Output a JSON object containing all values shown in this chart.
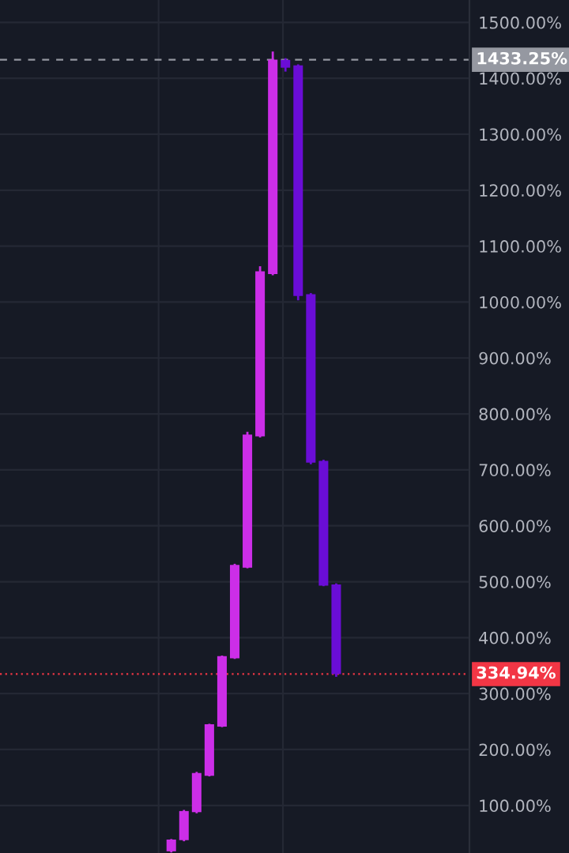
{
  "chart_data": {
    "type": "candlestick",
    "categories": [
      null,
      null,
      null,
      null,
      null,
      null,
      null,
      null,
      null,
      null,
      null,
      null,
      null,
      null,
      null,
      null,
      null,
      null,
      null,
      null,
      null,
      null,
      null,
      null,
      null,
      null,
      null,
      null,
      null,
      null,
      null,
      null,
      null,
      null,
      null,
      null,
      null
    ],
    "ohlc": [
      null,
      null,
      null,
      null,
      null,
      null,
      null,
      null,
      null,
      null,
      null,
      null,
      null,
      [
        18,
        40,
        16,
        39
      ],
      [
        38,
        92,
        36,
        90
      ],
      [
        88,
        160,
        86,
        158
      ],
      [
        153,
        246,
        152,
        245
      ],
      [
        241,
        368,
        240,
        367
      ],
      [
        363,
        532,
        362,
        530
      ],
      [
        525,
        768,
        524,
        763
      ],
      [
        760,
        1064,
        758,
        1055
      ],
      [
        1050,
        1448,
        1048,
        1433.25
      ],
      [
        1433,
        1436,
        1412,
        1419
      ],
      [
        1423,
        1425,
        1003,
        1011
      ],
      [
        1014,
        1016,
        710,
        713
      ],
      [
        716,
        718,
        492,
        493
      ],
      [
        495,
        497,
        330,
        334.94
      ],
      null,
      null,
      null,
      null,
      null,
      null,
      null,
      null,
      null,
      null
    ],
    "colors": [
      null,
      null,
      null,
      null,
      null,
      null,
      null,
      null,
      null,
      null,
      null,
      null,
      null,
      "#cc2ee8",
      "#cc2ee8",
      "#cc2ee8",
      "#cc2ee8",
      "#cc2ee8",
      "#cc2ee8",
      "#cc2ee8",
      "#cc2ee8",
      "#cc2ee8",
      "#6a0dd6",
      "#6a0dd6",
      "#6a0dd6",
      "#6a0dd6",
      "#6a0dd6",
      null,
      null,
      null,
      null,
      null,
      null,
      null,
      null,
      null,
      null
    ],
    "ylim": [
      15,
      1540
    ],
    "yticks": [
      {
        "value": 100,
        "label": "100.00%"
      },
      {
        "value": 200,
        "label": "200.00%"
      },
      {
        "value": 300,
        "label": "300.00%"
      },
      {
        "value": 400,
        "label": "400.00%"
      },
      {
        "value": 500,
        "label": "500.00%"
      },
      {
        "value": 600,
        "label": "600.00%"
      },
      {
        "value": 700,
        "label": "700.00%"
      },
      {
        "value": 800,
        "label": "800.00%"
      },
      {
        "value": 900,
        "label": "900.00%"
      },
      {
        "value": 1000,
        "label": "1000.00%"
      },
      {
        "value": 1100,
        "label": "1100.00%"
      },
      {
        "value": 1200,
        "label": "1200.00%"
      },
      {
        "value": 1300,
        "label": "1300.00%"
      },
      {
        "value": 1400,
        "label": "1400.00%"
      },
      {
        "value": 1500,
        "label": "1500.00%"
      }
    ],
    "ref_lines": [
      {
        "axis": "y",
        "value": 1433.25,
        "label": "1433.25%",
        "color": "#9598a1",
        "line_style": "dashed"
      },
      {
        "axis": "y",
        "value": 334.94,
        "label": "334.94%",
        "color": "#f23645",
        "line_style": "dotted"
      }
    ],
    "grid": true,
    "tick_labels": "y"
  }
}
